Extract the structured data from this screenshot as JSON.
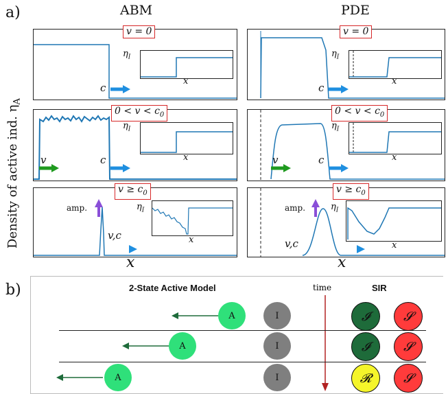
{
  "panel_a": {
    "letter": "a)",
    "columns": [
      "ABM",
      "PDE"
    ],
    "ylabel": "Density of active ind. η",
    "ylabel_sub": "A",
    "xlabel": "x",
    "rows": [
      {
        "condition": "v = 0"
      },
      {
        "condition": "0 < v < c0"
      },
      {
        "condition": "v ≥ c0"
      }
    ],
    "labels": {
      "c": "c",
      "v": "v",
      "vc": "v,c",
      "amp": "amp.",
      "eta_i": "η",
      "eta_i_sub": "I",
      "inset_x": "x"
    }
  },
  "panel_b": {
    "letter": "b)",
    "model_title": "2-State Active Model",
    "time_label": "time",
    "sir_title": "SIR",
    "active_label": "A",
    "inactive_label": "I",
    "rows": [
      {
        "sir": [
          "𝓘",
          "𝓢"
        ]
      },
      {
        "sir": [
          "𝓘",
          "𝓢"
        ]
      },
      {
        "sir": [
          "𝓡",
          "𝓢"
        ]
      }
    ]
  },
  "colors": {
    "curve": "#1f77b4",
    "arrow_c": "#1f8fe0",
    "arrow_v": "#1f9a1f",
    "amp_arrow": "#8a4fd8",
    "tag_border": "#d62728",
    "active": "#2fe07a",
    "inactive": "#7f7f7f",
    "infected": "#1e6b3a",
    "susceptible": "#ff3b3b",
    "recovered": "#f5f52a",
    "time_arrow": "#b22222"
  }
}
